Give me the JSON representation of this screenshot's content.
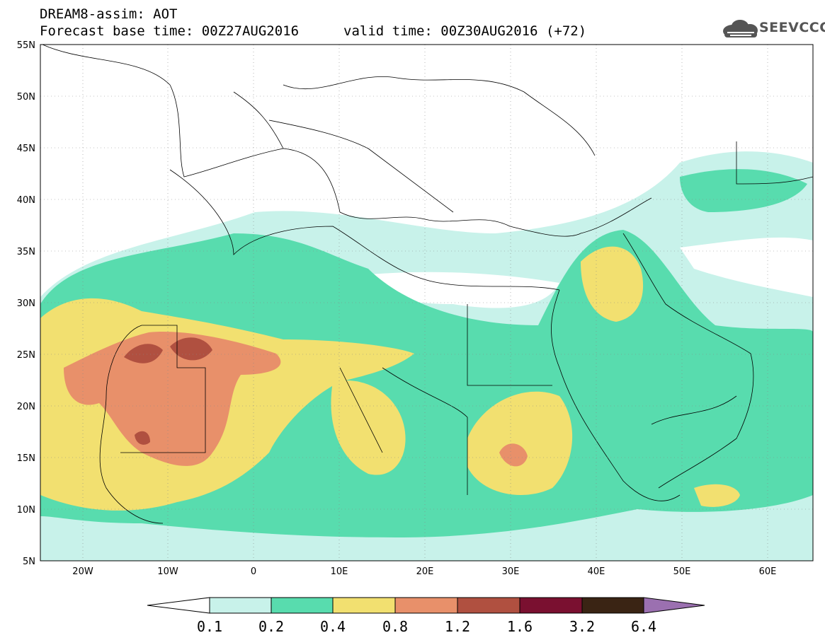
{
  "header": {
    "title": "DREAM8-assim: AOT",
    "base_time": "Forecast base time: 00Z27AUG2016",
    "valid_time": "valid time: 00Z30AUG2016 (+72)",
    "logo_text": "SEEVCCC"
  },
  "map": {
    "lat_labels": [
      "55N",
      "50N",
      "45N",
      "40N",
      "35N",
      "30N",
      "25N",
      "20N",
      "15N",
      "10N",
      "5N"
    ],
    "lon_labels": [
      "20W",
      "10W",
      "0",
      "10E",
      "20E",
      "30E",
      "40E",
      "50E",
      "60E"
    ],
    "lat_range": [
      5,
      55
    ],
    "lon_range": [
      -25,
      65
    ],
    "grid": "dotted"
  },
  "legend": {
    "labels": [
      "0.1",
      "0.2",
      "0.4",
      "0.8",
      "1.2",
      "1.6",
      "3.2",
      "6.4"
    ],
    "colors": [
      "#c8f2ea",
      "#58dcae",
      "#f2e070",
      "#e8906a",
      "#b05040",
      "#7a1030",
      "#3a2414",
      "#9b70b0"
    ],
    "colors_names": [
      "light-cyan",
      "turquoise",
      "yellow",
      "salmon",
      "brown-red",
      "dark-red",
      "dark-brown",
      "purple"
    ]
  }
}
